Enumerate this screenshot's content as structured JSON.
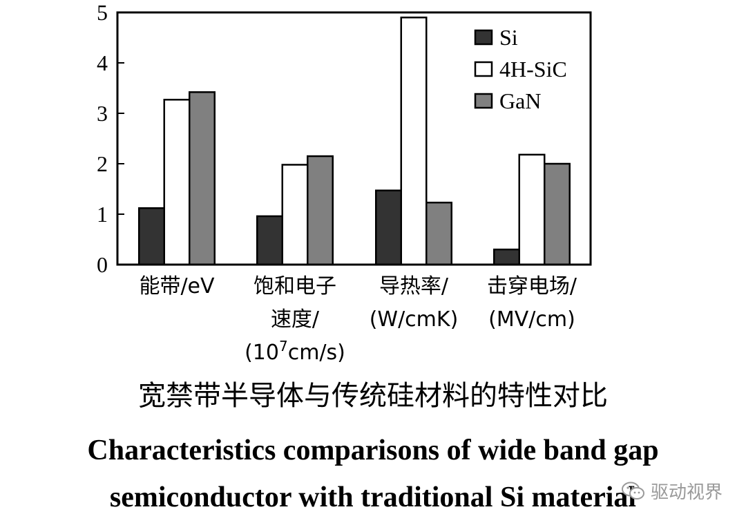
{
  "chart_data": {
    "type": "bar",
    "categories": [
      [
        "能带/eV"
      ],
      [
        "饱和电子",
        "速度/",
        "(10^7cm/s)"
      ],
      [
        "导热率/",
        "(W/cmK)"
      ],
      [
        "击穿电场/",
        "(MV/cm)"
      ]
    ],
    "series": [
      {
        "name": "Si",
        "color": "#333333",
        "values": [
          1.12,
          0.96,
          1.47,
          0.3
        ]
      },
      {
        "name": "4H-SiC",
        "color": "#ffffff",
        "values": [
          3.27,
          1.98,
          4.9,
          2.18
        ]
      },
      {
        "name": "GaN",
        "color": "#808080",
        "values": [
          3.42,
          2.15,
          1.23,
          2.0
        ]
      }
    ],
    "ylim": [
      0,
      5
    ],
    "yticks": [
      "0",
      "1",
      "2",
      "3",
      "4",
      "5"
    ],
    "legend_position": "top-right",
    "grid": false
  },
  "caption": {
    "chinese": "宽禁带半导体与传统硅材料的特性对比",
    "english_line1": "Characteristics comparisons of wide band gap",
    "english_line2": "semiconductor with traditional Si material"
  },
  "watermark": {
    "text": "驱动视界",
    "icon": "wechat-icon"
  }
}
